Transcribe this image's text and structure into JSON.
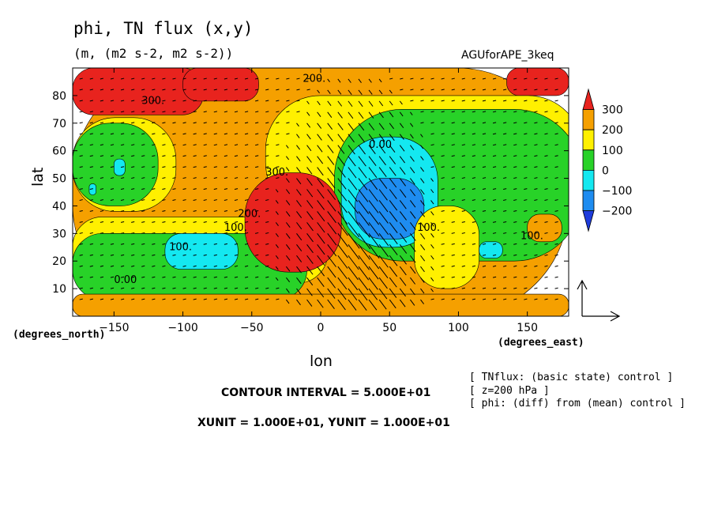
{
  "chart_data": {
    "type": "heatmap",
    "title": "phi, TN flux (x,y)",
    "subtitle": "(m, (m2 s-2, m2 s-2))",
    "dataset": "AGUforAPE_3keq",
    "xlabel": "lon",
    "ylabel": "lat",
    "x_unit_label": "(degrees_east)",
    "y_unit_label": "(degrees_north)",
    "xlim": [
      -180,
      180
    ],
    "ylim": [
      0,
      90
    ],
    "x_ticks": [
      -150,
      -100,
      -50,
      0,
      50,
      100,
      150
    ],
    "y_ticks": [
      10,
      20,
      30,
      40,
      50,
      60,
      70,
      80
    ],
    "colorbar": {
      "levels": [
        "300",
        "200",
        "100",
        "0",
        "-100",
        "-200"
      ],
      "colors": [
        "#e8231e",
        "#f5a000",
        "#fff000",
        "#28d228",
        "#14e8f0",
        "#1e8cf0",
        "#1e3cdc"
      ]
    },
    "contour_labels": [
      "200.",
      "300.",
      "100.",
      "0.00",
      "300.",
      "200.",
      "100.",
      "0.00",
      "100.",
      "100."
    ],
    "contour_interval": "CONTOUR INTERVAL = 5.000E+01",
    "vector_units": "XUNIT = 1.000E+01, YUNIT = 1.000E+01",
    "notes": [
      "[ TNflux: (basic state) control ]",
      "[ z=200 hPa ]",
      "[ phi: (diff) from (mean) control ]"
    ],
    "regions": [
      {
        "level": 200,
        "lon": [
          -180,
          180
        ],
        "lat": [
          0,
          90
        ]
      },
      {
        "level": 300,
        "lon": [
          -180,
          -85
        ],
        "lat": [
          73,
          90
        ]
      },
      {
        "level": 300,
        "lon": [
          -100,
          -45
        ],
        "lat": [
          78,
          90
        ]
      },
      {
        "level": 300,
        "lon": [
          135,
          180
        ],
        "lat": [
          80,
          90
        ]
      },
      {
        "level": 100,
        "lon": [
          -180,
          -105
        ],
        "lat": [
          38,
          72
        ]
      },
      {
        "level": 0,
        "lon": [
          -180,
          -118
        ],
        "lat": [
          40,
          70
        ]
      },
      {
        "level": 100,
        "lon": [
          -180,
          5
        ],
        "lat": [
          12,
          36
        ]
      },
      {
        "level": 0,
        "lon": [
          -180,
          -10
        ],
        "lat": [
          6,
          30
        ]
      },
      {
        "level": -100,
        "lon": [
          -113,
          -60
        ],
        "lat": [
          17,
          30
        ]
      },
      {
        "level": -100,
        "lon": [
          -150,
          -142
        ],
        "lat": [
          51,
          57
        ]
      },
      {
        "level": -100,
        "lon": [
          -168,
          -163
        ],
        "lat": [
          44,
          48
        ]
      },
      {
        "level": 100,
        "lon": [
          -40,
          190
        ],
        "lat": [
          36,
          80
        ]
      },
      {
        "level": 0,
        "lon": [
          10,
          190
        ],
        "lat": [
          20,
          75
        ]
      },
      {
        "level": -100,
        "lon": [
          15,
          85
        ],
        "lat": [
          25,
          65
        ]
      },
      {
        "level": -200,
        "lon": [
          25,
          75
        ],
        "lat": [
          28,
          50
        ]
      },
      {
        "level": 300,
        "lon": [
          -55,
          15
        ],
        "lat": [
          16,
          52
        ]
      },
      {
        "level": 100,
        "lon": [
          68,
          115
        ],
        "lat": [
          10,
          40
        ]
      },
      {
        "level": 200,
        "lon": [
          150,
          175
        ],
        "lat": [
          27,
          37
        ]
      },
      {
        "level": -100,
        "lon": [
          115,
          132
        ],
        "lat": [
          21,
          27
        ]
      },
      {
        "level": 200,
        "lon": [
          -180,
          180
        ],
        "lat": [
          0,
          8
        ]
      }
    ]
  }
}
